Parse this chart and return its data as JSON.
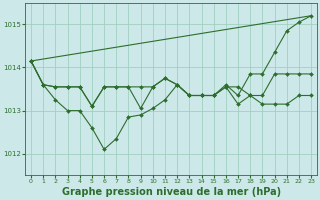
{
  "background_color": "#cce8e8",
  "grid_color": "#99ccbb",
  "line_color": "#2d6e2d",
  "xlabel": "Graphe pression niveau de la mer (hPa)",
  "xlabel_fontsize": 7,
  "ylim": [
    1011.5,
    1015.5
  ],
  "xlim": [
    -0.5,
    23.5
  ],
  "yticks": [
    1012,
    1013,
    1014,
    1015
  ],
  "xticks": [
    0,
    1,
    2,
    3,
    4,
    5,
    6,
    7,
    8,
    9,
    10,
    11,
    12,
    13,
    14,
    15,
    16,
    17,
    18,
    19,
    20,
    21,
    22,
    23
  ],
  "line1_x": [
    0,
    1,
    2,
    3,
    4,
    5,
    6,
    7,
    8,
    9,
    10,
    11,
    12,
    13,
    14,
    15,
    16,
    17,
    18,
    19,
    20,
    21,
    22,
    23
  ],
  "line1_y": [
    1014.15,
    1013.6,
    1013.55,
    1013.55,
    1013.55,
    1013.1,
    1013.55,
    1013.55,
    1013.55,
    1013.55,
    1013.55,
    1013.75,
    1013.6,
    1013.35,
    1013.35,
    1013.35,
    1013.55,
    1013.55,
    1013.35,
    1013.35,
    1013.85,
    1013.85,
    1013.85,
    1013.85
  ],
  "line2_x": [
    0,
    1,
    2,
    3,
    4,
    5,
    6,
    7,
    8,
    9,
    10,
    11,
    12,
    13,
    14,
    15,
    16,
    17,
    18,
    19,
    20,
    21,
    22,
    23
  ],
  "line2_y": [
    1014.15,
    1013.6,
    1013.25,
    1013.0,
    1013.0,
    1012.6,
    1012.1,
    1012.35,
    1012.85,
    1012.9,
    1013.05,
    1013.25,
    1013.6,
    1013.35,
    1013.35,
    1013.35,
    1013.55,
    1013.15,
    1013.35,
    1013.15,
    1013.15,
    1013.15,
    1013.35,
    1013.35
  ],
  "line3_x": [
    0,
    23
  ],
  "line3_y": [
    1014.15,
    1015.2
  ],
  "line4_x": [
    0,
    1,
    2,
    3,
    4,
    5,
    6,
    7,
    8,
    9,
    10,
    11,
    12,
    13,
    14,
    15,
    16,
    17,
    18,
    19,
    20,
    21,
    22,
    23
  ],
  "line4_y": [
    1014.15,
    1013.6,
    1013.55,
    1013.55,
    1013.55,
    1013.1,
    1013.55,
    1013.55,
    1013.55,
    1013.05,
    1013.55,
    1013.75,
    1013.6,
    1013.35,
    1013.35,
    1013.35,
    1013.6,
    1013.35,
    1013.85,
    1013.85,
    1014.35,
    1014.85,
    1015.05,
    1015.2
  ]
}
